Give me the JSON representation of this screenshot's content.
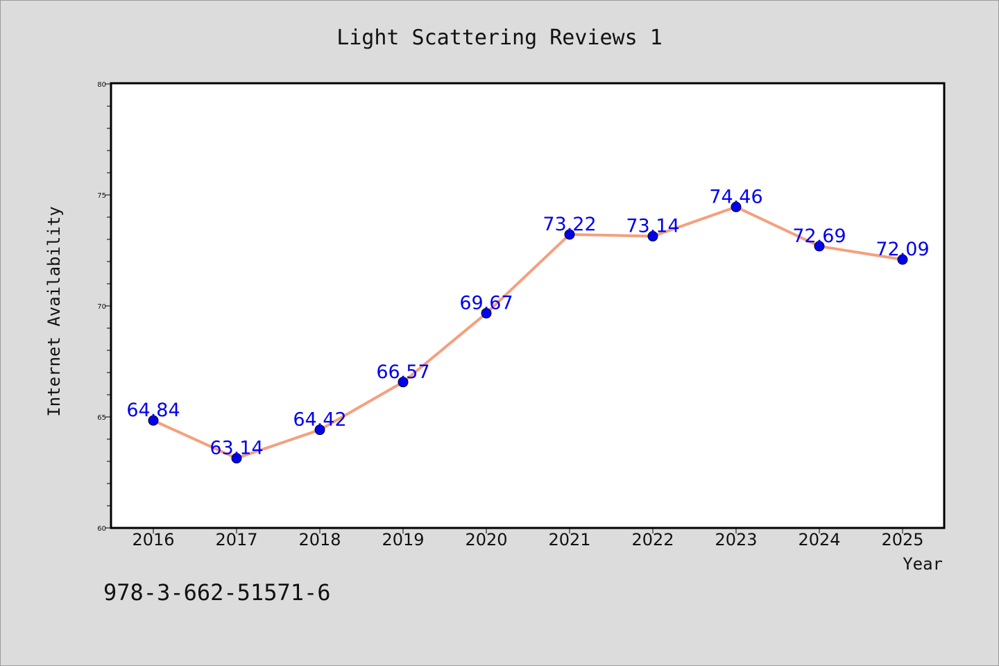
{
  "chart_data": {
    "type": "line",
    "title": "Light Scattering Reviews 1",
    "xlabel": "Year",
    "ylabel": "Internet Availability",
    "categories": [
      "2016",
      "2017",
      "2018",
      "2019",
      "2020",
      "2021",
      "2022",
      "2023",
      "2024",
      "2025"
    ],
    "series": [
      {
        "values": [
          64.84,
          63.14,
          64.42,
          66.57,
          69.67,
          73.22,
          73.14,
          74.46,
          72.69,
          72.09
        ],
        "data_labels": [
          "64.84",
          "63.14",
          "64.42",
          "66.57",
          "69.67",
          "73.22",
          "73.14",
          "74.46",
          "72.69",
          "72.09"
        ],
        "line_color": "#f4a07e",
        "marker_color": "#0000ee"
      }
    ],
    "ylim": [
      60,
      80
    ],
    "yticks": [
      "60",
      "65",
      "70",
      "75",
      "80"
    ],
    "label_color": "#0000ee",
    "grid": false
  },
  "footer_text": "978-3-662-51571-6"
}
